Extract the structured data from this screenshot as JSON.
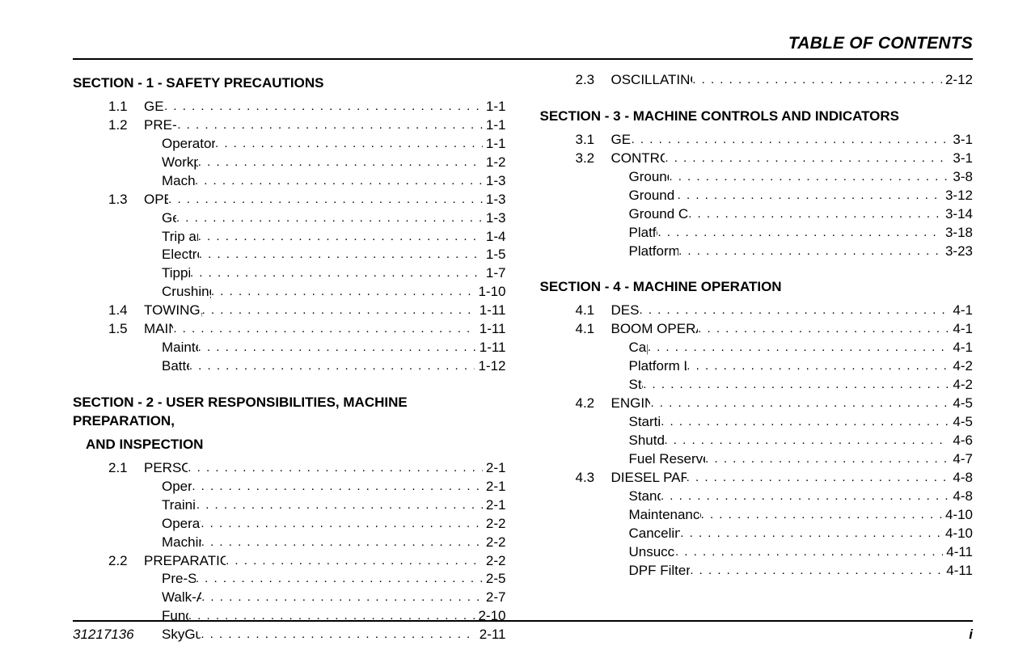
{
  "header_title": "TABLE OF CONTENTS",
  "footer": {
    "docnum": "31217136",
    "pagenum": "i"
  },
  "columns": [
    [
      {
        "type": "section",
        "text": "SECTION - 1 - SAFETY PRECAUTIONS"
      },
      {
        "type": "l1",
        "num": "1.1",
        "label": "GENERAL",
        "page": "1-1"
      },
      {
        "type": "l1",
        "num": "1.2",
        "label": "PRE-OPERATION",
        "page": "1-1"
      },
      {
        "type": "l2",
        "label": "Operator Training and Knowledge",
        "page": "1-1"
      },
      {
        "type": "l2",
        "label": "Workplace Inspection",
        "page": "1-2"
      },
      {
        "type": "l2",
        "label": "Machine Inspection",
        "page": "1-3"
      },
      {
        "type": "l1",
        "num": "1.3",
        "label": "OPERATION",
        "page": "1-3"
      },
      {
        "type": "l2",
        "label": "General",
        "page": "1-3"
      },
      {
        "type": "l2",
        "label": "Trip and Fall Hazards",
        "page": "1-4"
      },
      {
        "type": "l2",
        "label": "Electrocution Hazards",
        "page": "1-5"
      },
      {
        "type": "l2",
        "label": "Tipping Hazards",
        "page": "1-7"
      },
      {
        "type": "l2",
        "label": "Crushing and Collision Hazards",
        "page": "1-10"
      },
      {
        "type": "l1",
        "num": "1.4",
        "label": "TOWING, LIFTING, AND HAULING",
        "page": "1-11"
      },
      {
        "type": "l1",
        "num": "1.5",
        "label": "MAINTENANCE",
        "page": "1-11"
      },
      {
        "type": "l2",
        "label": "Maintenance Hazards",
        "page": "1-11"
      },
      {
        "type": "l2",
        "label": "Battery Hazards",
        "page": "1-12"
      },
      {
        "type": "gap"
      },
      {
        "type": "section",
        "text": "SECTION - 2 - USER RESPONSIBILITIES, MACHINE PREPARATION,"
      },
      {
        "type": "section-cont",
        "text": "AND INSPECTION"
      },
      {
        "type": "l1",
        "num": "2.1",
        "label": "PERSONNEL TRAINING",
        "page": "2-1"
      },
      {
        "type": "l2",
        "label": "Operator Training",
        "page": "2-1"
      },
      {
        "type": "l2",
        "label": "Training Supervision",
        "page": "2-1"
      },
      {
        "type": "l2",
        "label": "Operator Responsibility",
        "page": "2-2"
      },
      {
        "type": "l2",
        "label": "Machine Familiarization",
        "page": "2-2"
      },
      {
        "type": "l1",
        "num": "2.2",
        "label": "PREPARATION, INSPECTION, AND MAINTENANCE",
        "page": "2-2"
      },
      {
        "type": "l2",
        "label": "Pre-Start Inspection",
        "page": "2-5"
      },
      {
        "type": "l2",
        "label": "Walk-Around Inspection",
        "page": "2-7"
      },
      {
        "type": "l2",
        "label": "Function Check",
        "page": "2-10"
      },
      {
        "type": "l2",
        "label": "SkyGuard Function Test",
        "page": "2-11"
      }
    ],
    [
      {
        "type": "l1",
        "num": "2.3",
        "label": "OSCILLATING AXLE LOCKOUT TEST (IF EQUIPPED)",
        "page": "2-12"
      },
      {
        "type": "gap"
      },
      {
        "type": "section",
        "text": "SECTION - 3 - MACHINE CONTROLS AND INDICATORS"
      },
      {
        "type": "l1",
        "num": "3.1",
        "label": "GENERAL",
        "page": "3-1"
      },
      {
        "type": "l1",
        "num": "3.2",
        "label": "CONTROLS AND INDICATORS",
        "page": "3-1"
      },
      {
        "type": "l2",
        "label": "Ground Control Console",
        "page": "3-8"
      },
      {
        "type": "l2",
        "label": "Ground Control Indicator Panel",
        "page": "3-12"
      },
      {
        "type": "l2",
        "label": "Ground Control Console Display Gauge",
        "page": "3-14"
      },
      {
        "type": "l2",
        "label": "Platform Console",
        "page": "3-18"
      },
      {
        "type": "l2",
        "label": "Platform Control Indicator Panel",
        "page": "3-23"
      },
      {
        "type": "gap"
      },
      {
        "type": "section",
        "text": "SECTION - 4 - MACHINE OPERATION"
      },
      {
        "type": "l1",
        "num": "4.1",
        "label": "DESCRIPTION",
        "page": "4-1"
      },
      {
        "type": "l1",
        "num": "4.1",
        "label": "BOOM OPERATING CHARACTERISTICS &LIMITATIONS",
        "page": "4-1"
      },
      {
        "type": "l2",
        "label": "Capacities",
        "page": "4-1"
      },
      {
        "type": "l2",
        "label": "Platform Load Sensing System (LSS)",
        "page": "4-2"
      },
      {
        "type": "l2",
        "label": "Stability",
        "page": "4-2"
      },
      {
        "type": "l1",
        "num": "4.2",
        "label": "ENGINE OPERATION",
        "page": "4-5"
      },
      {
        "type": "l2",
        "label": "Starting Procedure",
        "page": "4-5"
      },
      {
        "type": "l2",
        "label": "Shutdown Procedure",
        "page": "4-6"
      },
      {
        "type": "l2",
        "label": "Fuel Reserve/Shut-Off System (Diesel Engines Only)",
        "page": "4-7"
      },
      {
        "type": "l1",
        "num": "4.3",
        "label": "DIESEL PARTICULATE FILTER (IF EQUIPPED)",
        "page": "4-8"
      },
      {
        "type": "l2",
        "label": "Standstill Cleaning",
        "page": "4-8"
      },
      {
        "type": "l2",
        "label": "Maintenance Standstill Cleaning Initiation Methods",
        "page": "4-10"
      },
      {
        "type": "l2",
        "label": "Canceling Maintenance Standstill",
        "page": "4-10"
      },
      {
        "type": "l2",
        "label": "Unsuccessful Cleaning Event",
        "page": "4-11"
      },
      {
        "type": "l2",
        "label": "DPF Filter Replacement due to Ash Load",
        "page": "4-11"
      }
    ]
  ]
}
